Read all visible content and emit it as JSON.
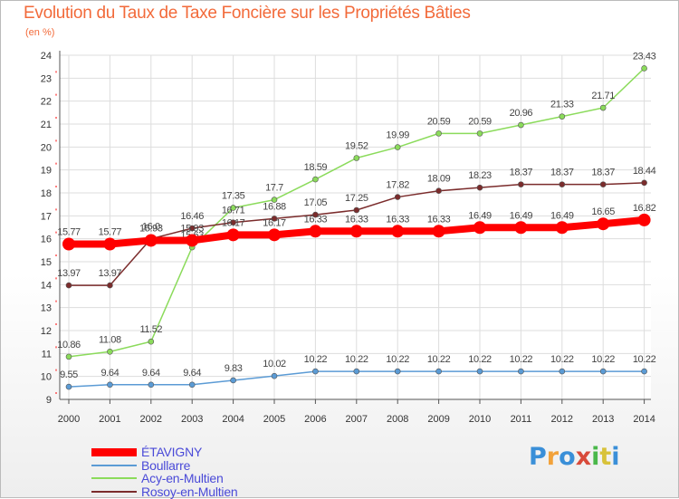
{
  "title": "Evolution du Taux de Taxe Foncière sur les Propriétés Bâties",
  "unit_label": "(en %)",
  "logo_text": "Proxiti",
  "chart_data": {
    "type": "line",
    "title": "Evolution du Taux de Taxe Foncière sur les Propriétés Bâties",
    "ylabel": "(en %)",
    "x": [
      "2000",
      "2001",
      "2002",
      "2003",
      "2004",
      "2005",
      "2006",
      "2007",
      "2008",
      "2009",
      "2010",
      "2011",
      "2012",
      "2013",
      "2014"
    ],
    "ylim": [
      9,
      24
    ],
    "yticks": [
      9,
      10,
      11,
      12,
      13,
      14,
      15,
      16,
      17,
      18,
      19,
      20,
      21,
      22,
      23,
      24
    ],
    "grid": true,
    "legend_position": "bottom-left",
    "series": [
      {
        "name": "ÉTAVIGNY",
        "color": "#ff0000",
        "values": [
          15.77,
          15.77,
          15.93,
          15.93,
          16.17,
          16.17,
          16.33,
          16.33,
          16.33,
          16.33,
          16.49,
          16.49,
          16.49,
          16.65,
          16.82
        ],
        "labels": [
          "15.77",
          "15.77",
          "15.93",
          "15.93",
          "16.17",
          "16.17",
          "16.33",
          "16.33",
          "16.33",
          "16.33",
          "16.49",
          "16.49",
          "16.49",
          "16.65",
          "16.82"
        ]
      },
      {
        "name": "Boullarre",
        "color": "#5b9bd5",
        "values": [
          9.55,
          9.64,
          9.64,
          9.64,
          9.83,
          10.02,
          10.22,
          10.22,
          10.22,
          10.22,
          10.22,
          10.22,
          10.22,
          10.22,
          10.22
        ],
        "labels": [
          "9.55",
          "9.64",
          "9.64",
          "9.64",
          "9.83",
          "10.02",
          "10.22",
          "10.22",
          "10.22",
          "10.22",
          "10.22",
          "10.22",
          "10.22",
          "10.22",
          "10.22"
        ]
      },
      {
        "name": "Acy-en-Multien",
        "color": "#8bdb5b",
        "values": [
          10.86,
          11.08,
          11.52,
          15.63,
          17.35,
          17.7,
          18.59,
          19.52,
          19.99,
          20.59,
          20.59,
          20.96,
          21.33,
          21.71,
          23.43
        ],
        "labels": [
          "10.86",
          "11.08",
          "11.52",
          "15.63",
          "17.35",
          "17.7",
          "18.59",
          "19.52",
          "19.99",
          "20.59",
          "20.59",
          "20.96",
          "21.33",
          "21.71",
          "23.43"
        ]
      },
      {
        "name": "Rosoy-en-Multien",
        "color": "#7b2c2c",
        "values": [
          13.97,
          13.97,
          16.0,
          16.46,
          16.71,
          16.88,
          17.05,
          17.25,
          17.82,
          18.09,
          18.23,
          18.37,
          18.37,
          18.37,
          18.44
        ],
        "labels": [
          "13.97",
          "13.97",
          "16.0",
          "16.46",
          "16.71",
          "16.88",
          "17.05",
          "17.25",
          "17.82",
          "18.09",
          "18.23",
          "18.37",
          "18.37",
          "18.37",
          "18.44"
        ]
      }
    ]
  }
}
